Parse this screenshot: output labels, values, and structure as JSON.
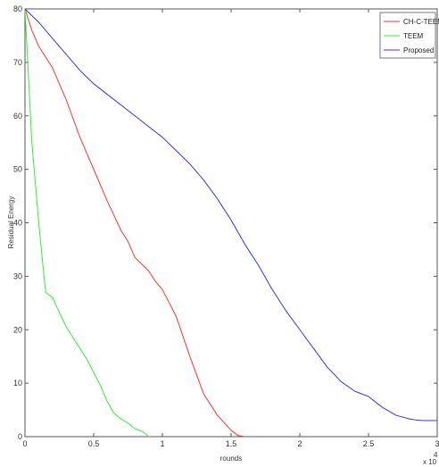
{
  "chart_data": {
    "type": "line",
    "title": "",
    "xlabel": "rounds",
    "ylabel": "Residual Energy",
    "x_multiplier_label": "x 10",
    "x_multiplier_exponent": "4",
    "xlim": [
      0,
      3
    ],
    "ylim": [
      0,
      80
    ],
    "xticks": [
      0,
      0.5,
      1,
      1.5,
      2,
      2.5,
      3
    ],
    "xtick_labels": [
      "0",
      "0.5",
      "1",
      "1.5",
      "2",
      "2.5",
      "3"
    ],
    "yticks": [
      0,
      10,
      20,
      30,
      40,
      50,
      60,
      70,
      80
    ],
    "ytick_labels": [
      "0",
      "10",
      "20",
      "30",
      "40",
      "50",
      "60",
      "70",
      "80"
    ],
    "grid": false,
    "legend_position": "top-right",
    "series": [
      {
        "name": "CH-C-TEEM",
        "color": "#ff3333",
        "points": [
          [
            0,
            80
          ],
          [
            0.05,
            76
          ],
          [
            0.1,
            73
          ],
          [
            0.2,
            69
          ],
          [
            0.3,
            63
          ],
          [
            0.4,
            56
          ],
          [
            0.5,
            50
          ],
          [
            0.6,
            44
          ],
          [
            0.7,
            38.5
          ],
          [
            0.75,
            36.5
          ],
          [
            0.8,
            33.5
          ],
          [
            0.9,
            31
          ],
          [
            0.95,
            29
          ],
          [
            1.0,
            27.5
          ],
          [
            1.05,
            25
          ],
          [
            1.1,
            22.5
          ],
          [
            1.2,
            15
          ],
          [
            1.3,
            8
          ],
          [
            1.4,
            4
          ],
          [
            1.5,
            1.2
          ],
          [
            1.55,
            0.2
          ],
          [
            1.6,
            0
          ]
        ]
      },
      {
        "name": "TEEM",
        "color": "#33ee33",
        "points": [
          [
            0,
            80
          ],
          [
            0.05,
            55
          ],
          [
            0.1,
            40
          ],
          [
            0.15,
            27
          ],
          [
            0.2,
            26
          ],
          [
            0.3,
            20.5
          ],
          [
            0.4,
            16.5
          ],
          [
            0.45,
            14.5
          ],
          [
            0.5,
            12
          ],
          [
            0.55,
            9.5
          ],
          [
            0.6,
            6.5
          ],
          [
            0.65,
            4.3
          ],
          [
            0.7,
            3.3
          ],
          [
            0.75,
            2.5
          ],
          [
            0.8,
            1.5
          ],
          [
            0.85,
            1.0
          ],
          [
            0.88,
            0.5
          ],
          [
            0.9,
            0
          ]
        ]
      },
      {
        "name": "Proposed",
        "color": "#3333ee",
        "points": [
          [
            0,
            80
          ],
          [
            0.1,
            77.5
          ],
          [
            0.2,
            74.5
          ],
          [
            0.3,
            71.5
          ],
          [
            0.4,
            68.5
          ],
          [
            0.5,
            66
          ],
          [
            0.6,
            64
          ],
          [
            0.7,
            62
          ],
          [
            0.8,
            60
          ],
          [
            0.9,
            58
          ],
          [
            1.0,
            56
          ],
          [
            1.1,
            53.5
          ],
          [
            1.2,
            51
          ],
          [
            1.3,
            48
          ],
          [
            1.4,
            44.5
          ],
          [
            1.5,
            40.5
          ],
          [
            1.6,
            36
          ],
          [
            1.7,
            32
          ],
          [
            1.8,
            27.5
          ],
          [
            1.9,
            23.5
          ],
          [
            2.0,
            20
          ],
          [
            2.1,
            16.5
          ],
          [
            2.2,
            13
          ],
          [
            2.3,
            10.3
          ],
          [
            2.4,
            8.5
          ],
          [
            2.5,
            7.5
          ],
          [
            2.6,
            5.5
          ],
          [
            2.7,
            4
          ],
          [
            2.8,
            3.3
          ],
          [
            2.85,
            3.1
          ],
          [
            2.9,
            3.0
          ],
          [
            3.0,
            3.0
          ]
        ]
      }
    ]
  }
}
